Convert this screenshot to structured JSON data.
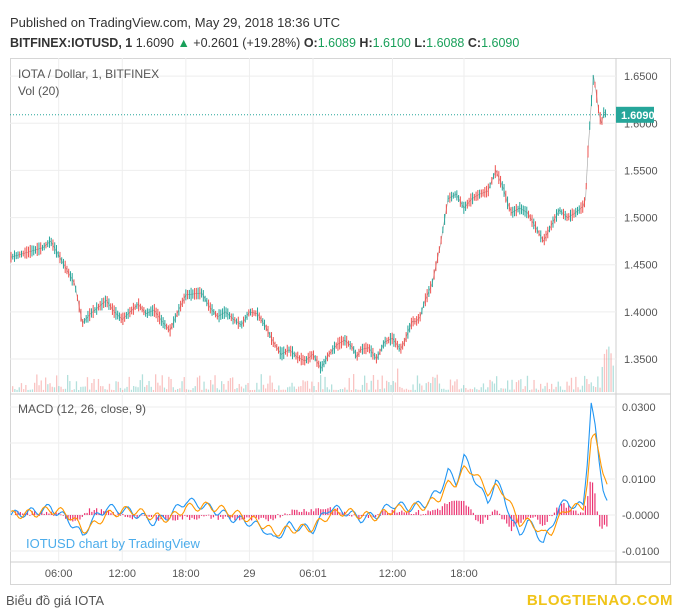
{
  "header": {
    "published": "Published on TradingView.com, May 29, 2018 18:36 UTC",
    "symbol": "BITFINEX:IOTUSD, 1",
    "last": "1.6090",
    "arrow": "▲",
    "change": "+0.2601 (+19.28%)",
    "o_label": "O:",
    "o_value": "1.6089",
    "h_label": "H:",
    "h_value": "1.6100",
    "l_label": "L:",
    "l_value": "1.6088",
    "c_label": "C:",
    "c_value": "1.6090"
  },
  "footer": {
    "left": "Biểu đồ giá IOTA",
    "right": "BLOGTIENAO.COM"
  },
  "colors": {
    "up": "#26a69a",
    "down": "#ef5350",
    "macd_line": "#2196f3",
    "signal_line": "#ff9800",
    "hist": "#e91e63",
    "price_tag": "#26a69a"
  },
  "chart_data": [
    {
      "type": "line",
      "title": "IOTA / Dollar, 1, BITFINEX",
      "subtitle": "Vol (20)",
      "x_ticks": [
        "06:00",
        "12:00",
        "18:00",
        "29",
        "06:01",
        "12:00",
        "18:00"
      ],
      "y_ticks": [
        "1.6500",
        "1.6000",
        "1.5500",
        "1.5000",
        "1.4500",
        "1.4000",
        "1.3500"
      ],
      "ylim": [
        1.315,
        1.665
      ],
      "last_price_label": "1.6090",
      "last_price": 1.609,
      "series": [
        {
          "x": [
            0,
            2,
            4,
            5,
            6,
            7,
            8,
            9,
            10,
            12,
            13,
            14,
            15,
            16,
            17,
            18,
            19,
            20,
            21,
            22,
            24,
            25,
            26,
            27,
            28,
            29,
            30,
            31,
            32,
            33,
            34,
            35,
            36,
            37,
            38,
            39,
            40,
            41,
            42,
            43,
            43.5,
            44,
            45,
            46,
            47,
            48,
            49,
            49.5,
            50,
            50.5,
            51,
            51.5,
            52,
            53,
            54,
            55,
            56,
            57,
            58,
            59,
            60,
            61,
            62,
            62.5,
            63,
            64,
            65,
            66,
            67,
            68,
            69,
            70,
            71,
            72,
            72.3,
            72.6,
            73,
            73.3,
            73.6,
            74,
            74.3,
            74.6,
            75
          ],
          "values": [
            1.458,
            1.463,
            1.468,
            1.475,
            1.46,
            1.445,
            1.43,
            1.388,
            1.398,
            1.412,
            1.4,
            1.392,
            1.4,
            1.408,
            1.398,
            1.402,
            1.39,
            1.38,
            1.4,
            1.418,
            1.42,
            1.405,
            1.395,
            1.4,
            1.392,
            1.386,
            1.4,
            1.398,
            1.385,
            1.368,
            1.355,
            1.36,
            1.352,
            1.348,
            1.355,
            1.34,
            1.355,
            1.365,
            1.37,
            1.362,
            1.352,
            1.36,
            1.362,
            1.35,
            1.368,
            1.372,
            1.36,
            1.368,
            1.38,
            1.39,
            1.39,
            1.395,
            1.41,
            1.43,
            1.47,
            1.52,
            1.525,
            1.51,
            1.52,
            1.525,
            1.528,
            1.55,
            1.53,
            1.515,
            1.505,
            1.51,
            1.505,
            1.49,
            1.475,
            1.492,
            1.508,
            1.5,
            1.505,
            1.512,
            1.52,
            1.57,
            1.62,
            1.65,
            1.635,
            1.61,
            1.6,
            1.612,
            1.609
          ]
        }
      ]
    },
    {
      "type": "line",
      "title": "MACD (12, 26, close, 9)",
      "watermark": "IOTUSD chart by TradingView",
      "y_ticks": [
        "0.0300",
        "0.0200",
        "0.0100",
        "-0.0000",
        "-0.0100"
      ],
      "ylim": [
        -0.0125,
        0.0325
      ],
      "series": [
        {
          "name": "MACD",
          "x": [
            0,
            3,
            5,
            7,
            8,
            9,
            10,
            12,
            15,
            18,
            20,
            22,
            25,
            28,
            30,
            32,
            33,
            35,
            38,
            40,
            42,
            44,
            46,
            48,
            50,
            52,
            54,
            55,
            56,
            57,
            58,
            59,
            60,
            61,
            62,
            63,
            64,
            65,
            66,
            67,
            68,
            69,
            70,
            71,
            72,
            72.5,
            73,
            73.5,
            74,
            74.5,
            75
          ],
          "values": [
            0.0,
            0.001,
            0.002,
            -0.001,
            -0.003,
            -0.006,
            -0.002,
            0.002,
            0.001,
            -0.002,
            0.0,
            0.004,
            0.002,
            -0.001,
            -0.002,
            -0.004,
            -0.007,
            -0.003,
            -0.004,
            0.002,
            0.001,
            -0.001,
            0.0,
            0.003,
            0.002,
            0.003,
            0.007,
            0.012,
            0.009,
            0.016,
            0.012,
            0.007,
            0.004,
            0.009,
            0.006,
            -0.002,
            -0.005,
            -0.002,
            -0.004,
            -0.008,
            -0.003,
            0.002,
            0.004,
            0.002,
            0.003,
            0.015,
            0.031,
            0.024,
            0.015,
            0.008,
            0.004
          ]
        },
        {
          "name": "Signal",
          "x": [
            0,
            3,
            5,
            7,
            8,
            9,
            10,
            12,
            15,
            18,
            20,
            22,
            25,
            28,
            30,
            32,
            33,
            35,
            38,
            40,
            42,
            44,
            46,
            48,
            50,
            52,
            54,
            55,
            56,
            57,
            58,
            59,
            60,
            61,
            62,
            63,
            64,
            65,
            66,
            67,
            68,
            69,
            70,
            71,
            72,
            72.5,
            73,
            73.5,
            74,
            74.5,
            75
          ],
          "values": [
            0.0,
            0.0005,
            0.0015,
            0.0005,
            -0.0015,
            -0.004,
            -0.0035,
            0.0,
            0.0015,
            -0.0005,
            -0.001,
            0.002,
            0.0025,
            0.0005,
            -0.001,
            -0.003,
            -0.005,
            -0.004,
            -0.0035,
            0.0,
            0.001,
            0.0,
            -0.0005,
            0.0015,
            0.002,
            0.0025,
            0.005,
            0.0085,
            0.009,
            0.0125,
            0.0125,
            0.0095,
            0.0065,
            0.0075,
            0.0065,
            0.002,
            -0.002,
            -0.002,
            -0.003,
            -0.0055,
            -0.0045,
            -0.001,
            0.002,
            0.002,
            0.0025,
            0.009,
            0.02,
            0.022,
            0.018,
            0.012,
            0.0075
          ]
        }
      ],
      "histogram": {
        "x": [
          5,
          8,
          10,
          15,
          20,
          25,
          28,
          32,
          35,
          40,
          44,
          48,
          52,
          54,
          55,
          57,
          59,
          61,
          63,
          65,
          67,
          69,
          72,
          73,
          74,
          75
        ],
        "values": [
          0.0005,
          -0.0015,
          0.0015,
          -0.0005,
          -0.001,
          -0.0005,
          -0.001,
          -0.0015,
          0.001,
          0.002,
          -0.001,
          0.0015,
          0.0005,
          0.002,
          0.0035,
          0.0035,
          -0.0025,
          0.0015,
          -0.004,
          0.0,
          -0.0025,
          0.003,
          0.0005,
          0.011,
          -0.003,
          -0.0035
        ]
      }
    }
  ]
}
